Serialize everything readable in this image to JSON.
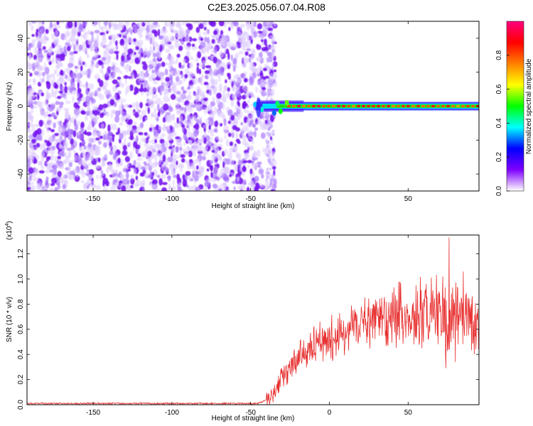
{
  "title": "C2E3.2025.056.07.04.R08",
  "chart_data": [
    {
      "type": "heatmap",
      "xlabel": "Height of straight line (km)",
      "ylabel": "Frequency (Hz)",
      "xlim": [
        -192,
        95
      ],
      "ylim": [
        -50,
        50
      ],
      "xticks": [
        -150,
        -100,
        -50,
        0,
        50
      ],
      "yticks": [
        -40,
        -20,
        0,
        20,
        40
      ],
      "noise_region_x": [
        -192,
        -37
      ],
      "signal_line": {
        "frequency_hz": 0,
        "x_range": [
          -47,
          95
        ],
        "onset_km": -47,
        "peak_amplitude": 0.95
      },
      "colorbar": {
        "label": "Normalized spectral amplitude",
        "range": [
          0,
          1
        ],
        "ticks": [
          0.0,
          0.2,
          0.4,
          0.6,
          0.8
        ],
        "colors": [
          "#ffffff",
          "#8000ff",
          "#0000ff",
          "#00ffff",
          "#00ff00",
          "#ffff00",
          "#ff8000",
          "#ff0000",
          "#ff0080"
        ]
      }
    },
    {
      "type": "line",
      "xlabel": "Height of straight line (km)",
      "ylabel": "SNR (10 * v/v)",
      "exponent_label": "(x10",
      "exponent_power": "4",
      "exponent_close": ")",
      "xlim": [
        -192,
        95
      ],
      "ylim": [
        0,
        1.35
      ],
      "xticks": [
        -150,
        -100,
        -50,
        0,
        50
      ],
      "yticks": [
        0.0,
        0.2,
        0.4,
        0.6,
        0.8,
        1.0,
        1.2
      ],
      "line_color": "#e83030",
      "trend": {
        "x": [
          -192,
          -45,
          -38,
          -30,
          -20,
          -10,
          0,
          10,
          20,
          30,
          40,
          50,
          60,
          70,
          80,
          95
        ],
        "y": [
          0.01,
          0.01,
          0.05,
          0.22,
          0.38,
          0.45,
          0.52,
          0.58,
          0.63,
          0.68,
          0.7,
          0.72,
          0.73,
          0.72,
          0.7,
          0.7
        ]
      },
      "spikes": [
        {
          "x": 76,
          "y": 1.33
        },
        {
          "x": 72,
          "y": 1.02
        },
        {
          "x": 85,
          "y": 1.06
        },
        {
          "x": 55,
          "y": 0.95
        },
        {
          "x": 74,
          "y": 0.29
        }
      ]
    }
  ]
}
